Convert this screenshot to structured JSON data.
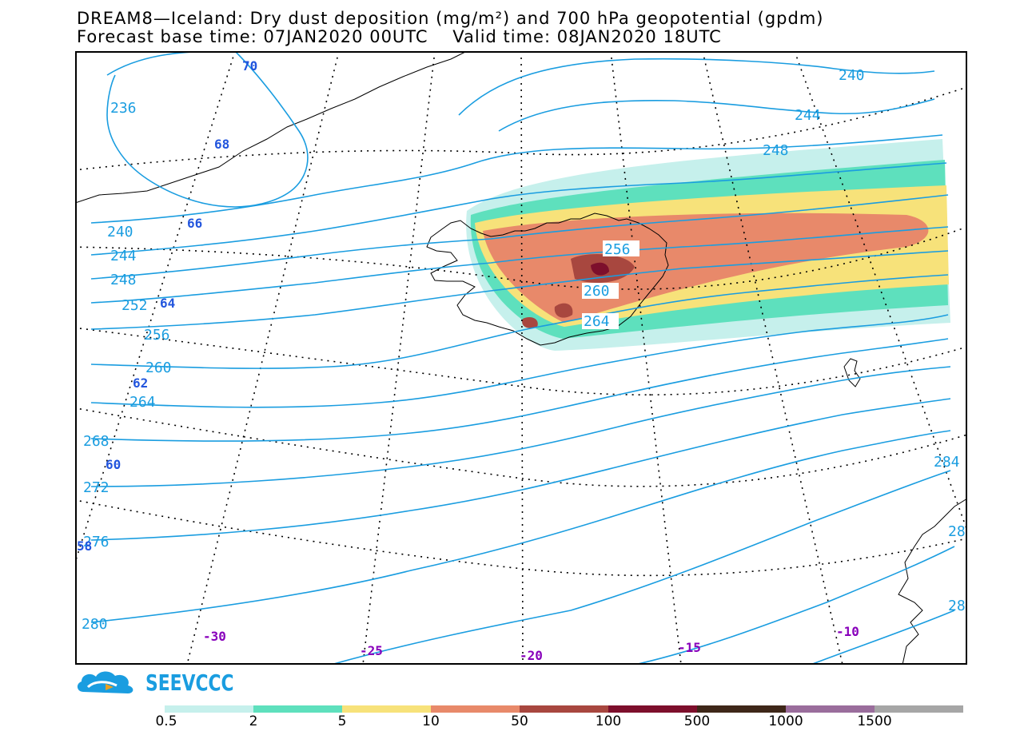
{
  "title_line1": "DREAM8—Iceland: Dry dust deposition (mg/m²) and 700 hPa geopotential (gpdm)",
  "title_line2": "Forecast base time: 07JAN2020 00UTC    Valid time: 08JAN2020 18UTC",
  "logo_text": "SEEVCCC",
  "colors": {
    "geopotential_contour": "#1a9de0",
    "latitude_label": "#2255dd",
    "longitude_label": "#8800bb"
  },
  "latitude_labels": [
    "70",
    "68",
    "66",
    "64",
    "62",
    "60",
    "58"
  ],
  "longitude_labels": [
    "-30",
    "-25",
    "-20",
    "-15",
    "-10"
  ],
  "contour_labels": [
    "240",
    "244",
    "248",
    "236",
    "240",
    "244",
    "248",
    "252",
    "256",
    "260",
    "264",
    "268",
    "272",
    "276",
    "280",
    "284",
    "256",
    "260",
    "264",
    "28",
    "28"
  ],
  "legend": {
    "ticks": [
      "0.5",
      "2",
      "5",
      "10",
      "50",
      "100",
      "500",
      "1000",
      "1500"
    ],
    "colors": [
      "#c6f0ec",
      "#5ee0bd",
      "#f7e27a",
      "#e8896a",
      "#a8473f",
      "#7d0f2c",
      "#3e2719",
      "#9a6d9c",
      "#a6a6a6"
    ]
  }
}
